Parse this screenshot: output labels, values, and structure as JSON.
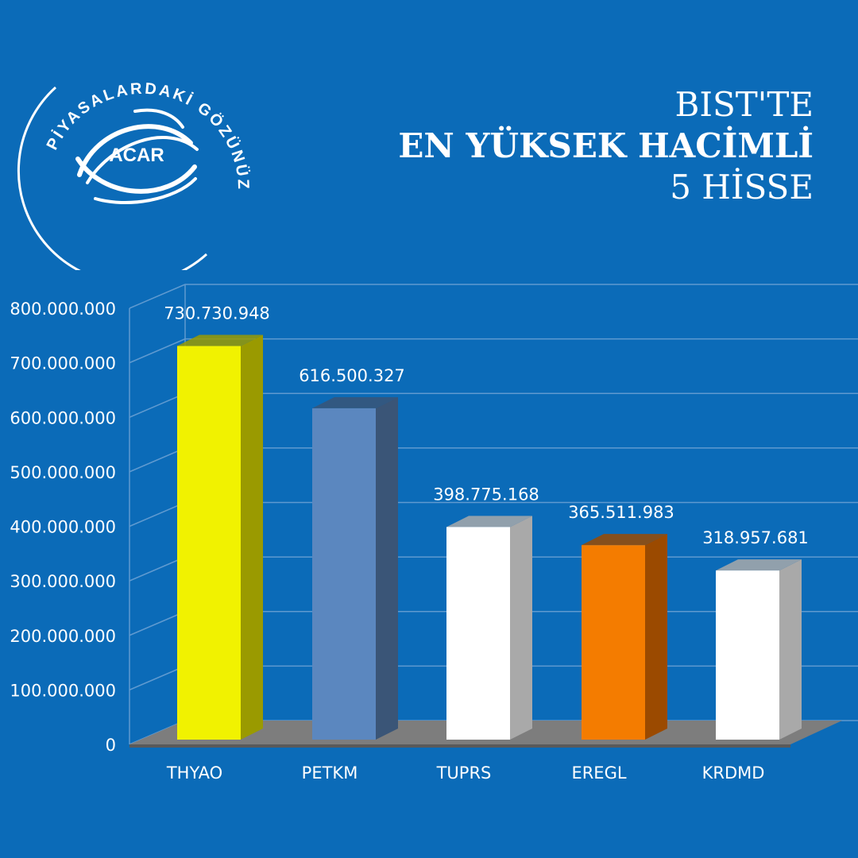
{
  "brand": {
    "name": "ACAR",
    "ring_text": "PİYASALARDAKİ GÖZÜNÜZ"
  },
  "title": {
    "line1": "BIST'TE",
    "line2": "EN YÜKSEK HACİMLİ",
    "line3": "5 HİSSE"
  },
  "colors": {
    "background": "#0b6bb8",
    "yellow": "#f1f200",
    "steel_blue": "#5b87bf",
    "white": "#ffffff",
    "orange": "#f47c00"
  },
  "chart_data": {
    "type": "bar",
    "categories": [
      "THYAO",
      "PETKM",
      "TUPRS",
      "EREGL",
      "KRDMD"
    ],
    "values": [
      730730948,
      616500327,
      398775168,
      365511983,
      318957681
    ],
    "value_labels": [
      "730.730.948",
      "616.500.327",
      "398.775.168",
      "365.511.983",
      "318.957.681"
    ],
    "bar_colors": [
      "#f1f200",
      "#5b87bf",
      "#ffffff",
      "#f47c00",
      "#ffffff"
    ],
    "bar_side_colors": [
      "#9a9a00",
      "#3a5577",
      "#a9a9a9",
      "#9b4a00",
      "#a9a9a9"
    ],
    "yticks": [
      0,
      100000000,
      200000000,
      300000000,
      400000000,
      500000000,
      600000000,
      700000000,
      800000000
    ],
    "ytick_labels": [
      "0",
      "100.000.000",
      "200.000.000",
      "300.000.000",
      "400.000.000",
      "500.000.000",
      "600.000.000",
      "700.000.000",
      "800.000.000"
    ],
    "ylim": [
      0,
      800000000
    ],
    "grid": true,
    "title": "",
    "xlabel": "",
    "ylabel": ""
  }
}
